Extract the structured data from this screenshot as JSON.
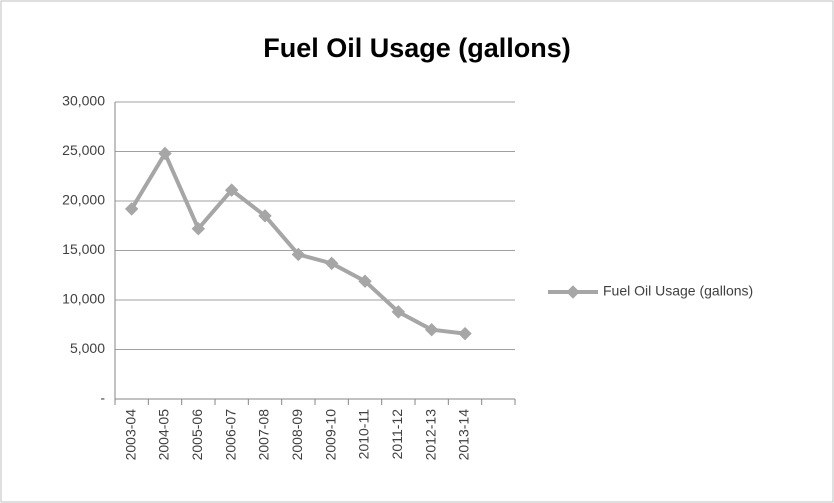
{
  "chart_data": {
    "type": "line",
    "title": "Fuel Oil Usage (gallons)",
    "categories": [
      "2003-04",
      "2004-05",
      "2005-06",
      "2006-07",
      "2007-08",
      "2008-09",
      "2009-10",
      "2010-11",
      "2011-12",
      "2012-13",
      "2013-14",
      null
    ],
    "series": [
      {
        "name": "Fuel Oil Usage (gallons)",
        "color": "#a6a6a6",
        "values": [
          19200,
          24800,
          17200,
          21100,
          18500,
          14600,
          13700,
          11900,
          8800,
          7000,
          6600,
          null
        ]
      }
    ],
    "ylim": [
      0,
      30000
    ],
    "yticks": [
      {
        "value": 0,
        "label": "-"
      },
      {
        "value": 5000,
        "label": "5,000"
      },
      {
        "value": 10000,
        "label": "10,000"
      },
      {
        "value": 15000,
        "label": "15,000"
      },
      {
        "value": 20000,
        "label": "20,000"
      },
      {
        "value": 25000,
        "label": "25,000"
      },
      {
        "value": 30000,
        "label": "30,000"
      }
    ],
    "grid": true,
    "legend": "right"
  }
}
